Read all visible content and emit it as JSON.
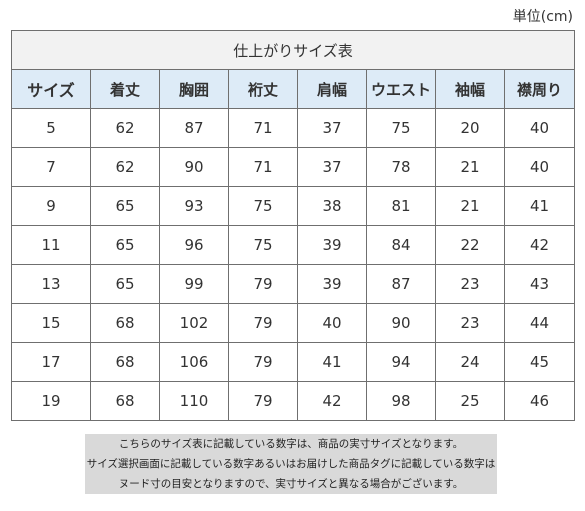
{
  "unit_label": "単位(cm)",
  "table": {
    "title": "仕上がりサイズ表",
    "headers": [
      "サイズ",
      "着丈",
      "胸囲",
      "裄丈",
      "肩幅",
      "ウエスト",
      "袖幅",
      "襟周り"
    ],
    "rows": [
      [
        "5",
        "62",
        "87",
        "71",
        "37",
        "75",
        "20",
        "40"
      ],
      [
        "7",
        "62",
        "90",
        "71",
        "37",
        "78",
        "21",
        "40"
      ],
      [
        "9",
        "65",
        "93",
        "75",
        "38",
        "81",
        "21",
        "41"
      ],
      [
        "11",
        "65",
        "96",
        "75",
        "39",
        "84",
        "22",
        "42"
      ],
      [
        "13",
        "65",
        "99",
        "79",
        "39",
        "87",
        "23",
        "43"
      ],
      [
        "15",
        "68",
        "102",
        "79",
        "40",
        "90",
        "23",
        "44"
      ],
      [
        "17",
        "68",
        "106",
        "79",
        "41",
        "94",
        "24",
        "45"
      ],
      [
        "19",
        "68",
        "110",
        "79",
        "42",
        "98",
        "25",
        "46"
      ]
    ]
  },
  "note": {
    "lines": [
      "こちらのサイズ表に記載している数字は、商品の実寸サイズとなります。",
      "サイズ選択画面に記載している数字あるいはお届けした商品タグに記載している数字は",
      "ヌード寸の目安となりますので、実寸サイズと異なる場合がございます。"
    ]
  },
  "colors": {
    "header_bg": "#ddebf7",
    "title_bg": "#f2f2f2",
    "note_bg": "#d9d9d9",
    "border": "#6f6f6f"
  }
}
